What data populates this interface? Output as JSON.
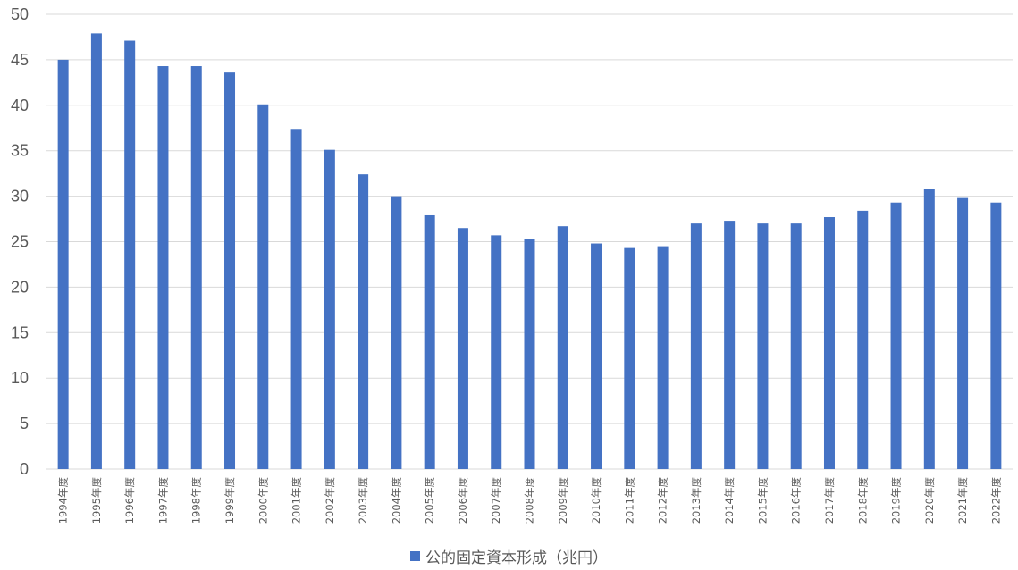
{
  "chart_data": {
    "type": "bar",
    "categories": [
      "1994年度",
      "1995年度",
      "1996年度",
      "1997年度",
      "1998年度",
      "1999年度",
      "2000年度",
      "2001年度",
      "2002年度",
      "2003年度",
      "2004年度",
      "2005年度",
      "2006年度",
      "2007年度",
      "2008年度",
      "2009年度",
      "2010年度",
      "2011年度",
      "2012年度",
      "2013年度",
      "2014年度",
      "2015年度",
      "2016年度",
      "2017年度",
      "2018年度",
      "2019年度",
      "2020年度",
      "2021年度",
      "2022年度"
    ],
    "series": [
      {
        "name": "公的固定資本形成（兆円）",
        "color": "#4472c4",
        "values": [
          45.0,
          47.9,
          47.1,
          44.3,
          44.3,
          43.6,
          40.1,
          37.4,
          35.1,
          32.4,
          30.0,
          27.9,
          26.5,
          25.7,
          25.3,
          26.7,
          24.8,
          24.3,
          24.5,
          27.0,
          27.3,
          27.0,
          27.0,
          27.7,
          28.4,
          29.3,
          30.8,
          29.8,
          29.3
        ]
      }
    ],
    "ylim": [
      0,
      50
    ],
    "yticks": [
      0,
      5,
      10,
      15,
      20,
      25,
      30,
      35,
      40,
      45,
      50
    ],
    "grid": true,
    "legend_position": "bottom"
  }
}
